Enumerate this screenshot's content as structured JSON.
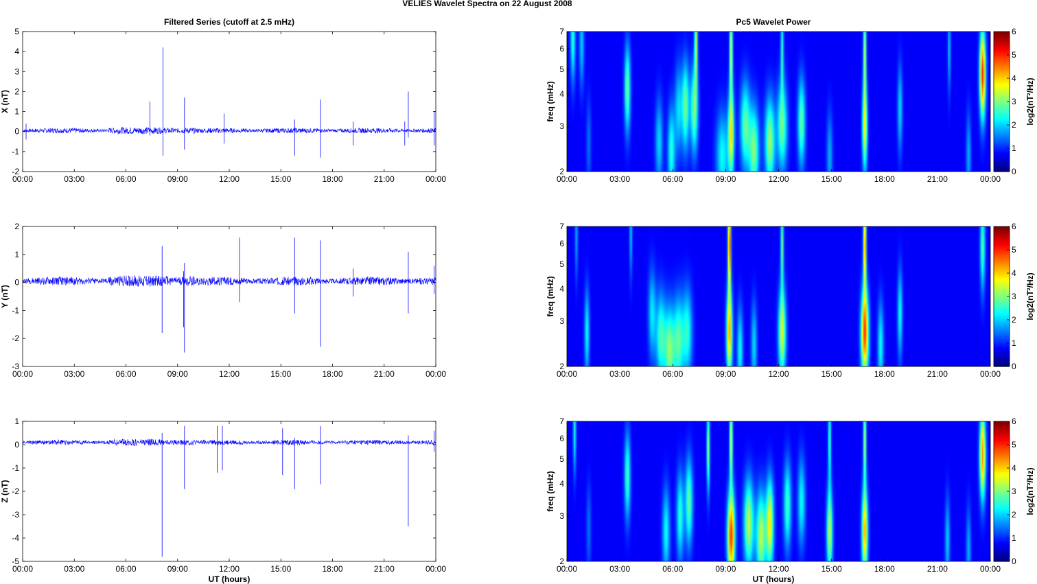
{
  "figure": {
    "suptitle": "VELIES Wavelet Spectra on 22 August    2008",
    "left_title": "Filtered Series (cutoff at 2.5 mHz)",
    "right_title": "Pc5 Wavelet Power",
    "xlabel": "UT (hours)",
    "freq_label": "freq (mHz)",
    "colorbar_label": "log2(nT²/Hz)",
    "colormap": "jet",
    "trace_color": "#0000ff"
  },
  "chart_data": [
    {
      "type": "line",
      "title": "Filtered Series (cutoff at 2.5 mHz)",
      "ylabel": "X (nT)",
      "xlabel": "",
      "xlim": [
        0,
        24
      ],
      "ylim": [
        -2,
        5
      ],
      "xticks": [
        "00:00",
        "03:00",
        "06:00",
        "09:00",
        "12:00",
        "15:00",
        "18:00",
        "21:00",
        "00:00"
      ],
      "yticks": [
        "-2",
        "-1",
        "0",
        "1",
        "2",
        "3",
        "4",
        "5"
      ],
      "noise_amplitude": 0.12,
      "baseline": 0.05,
      "spikes": [
        {
          "t": 0.2,
          "hi": 0.4,
          "lo": -0.4
        },
        {
          "t": 7.4,
          "hi": 1.5,
          "lo": -0.2
        },
        {
          "t": 8.15,
          "hi": 4.2,
          "lo": -1.2
        },
        {
          "t": 9.4,
          "hi": 1.7,
          "lo": -0.9
        },
        {
          "t": 11.7,
          "hi": 0.9,
          "lo": -0.6
        },
        {
          "t": 15.8,
          "hi": 0.6,
          "lo": -1.2
        },
        {
          "t": 17.3,
          "hi": 1.6,
          "lo": -1.3
        },
        {
          "t": 19.2,
          "hi": 0.5,
          "lo": -0.7
        },
        {
          "t": 22.2,
          "hi": 0.5,
          "lo": -0.7
        },
        {
          "t": 22.4,
          "hi": 2.0,
          "lo": -0.3
        },
        {
          "t": 23.9,
          "hi": 1.0,
          "lo": -0.7
        }
      ]
    },
    {
      "type": "heatmap",
      "title": "Pc5 Wavelet Power",
      "ylabel": "freq (mHz)",
      "xlim": [
        0,
        24
      ],
      "ylim": [
        2,
        7
      ],
      "yscale": "log",
      "xticks": [
        "00:00",
        "03:00",
        "06:00",
        "09:00",
        "12:00",
        "15:00",
        "18:00",
        "21:00",
        "00:00"
      ],
      "yticks": [
        "2",
        "3",
        "4",
        "5",
        "6",
        "7"
      ],
      "colorbar": {
        "range": [
          0,
          6
        ],
        "ticks": [
          "0",
          "1",
          "2",
          "3",
          "4",
          "5",
          "6"
        ],
        "label": "log2(nT²/Hz)"
      },
      "blobs": [
        {
          "t": 0.3,
          "f": 6.6,
          "v": 2.0,
          "w": 0.1
        },
        {
          "t": 0.8,
          "f": 6.3,
          "v": 1.4,
          "w": 0.1
        },
        {
          "t": 1.2,
          "f": 2.6,
          "v": 0.8,
          "w": 0.1
        },
        {
          "t": 3.4,
          "f": 4.2,
          "v": 2.5,
          "w": 0.12
        },
        {
          "t": 5.2,
          "f": 2.6,
          "v": 1.5,
          "w": 0.15
        },
        {
          "t": 5.9,
          "f": 2.4,
          "v": 2.0,
          "w": 0.15
        },
        {
          "t": 6.3,
          "f": 3.5,
          "v": 1.5,
          "w": 0.15
        },
        {
          "t": 6.7,
          "f": 3.6,
          "v": 2.5,
          "w": 0.15
        },
        {
          "t": 7.2,
          "f": 3.5,
          "v": 2.6,
          "w": 0.15
        },
        {
          "t": 7.3,
          "f": 6.5,
          "v": 3.0,
          "w": 0.06
        },
        {
          "t": 8.8,
          "f": 2.3,
          "v": 1.8,
          "w": 0.25
        },
        {
          "t": 9.3,
          "f": 2.8,
          "v": 3.5,
          "w": 0.12
        },
        {
          "t": 9.3,
          "f": 6.0,
          "v": 3.5,
          "w": 0.06
        },
        {
          "t": 10.1,
          "f": 3.0,
          "v": 2.4,
          "w": 0.2
        },
        {
          "t": 10.6,
          "f": 2.4,
          "v": 2.6,
          "w": 0.2
        },
        {
          "t": 11.5,
          "f": 2.6,
          "v": 2.8,
          "w": 0.2
        },
        {
          "t": 12.2,
          "f": 3.0,
          "v": 2.5,
          "w": 0.2
        },
        {
          "t": 12.2,
          "f": 6.0,
          "v": 2.0,
          "w": 0.06
        },
        {
          "t": 13.3,
          "f": 3.1,
          "v": 2.4,
          "w": 0.15
        },
        {
          "t": 14.9,
          "f": 2.3,
          "v": 1.2,
          "w": 0.12
        },
        {
          "t": 16.9,
          "f": 3.0,
          "v": 3.5,
          "w": 0.1
        },
        {
          "t": 16.9,
          "f": 6.0,
          "v": 3.0,
          "w": 0.06
        },
        {
          "t": 18.9,
          "f": 3.5,
          "v": 1.5,
          "w": 0.1
        },
        {
          "t": 21.7,
          "f": 6.0,
          "v": 1.4,
          "w": 0.06
        },
        {
          "t": 22.8,
          "f": 2.3,
          "v": 1.2,
          "w": 0.1
        },
        {
          "t": 23.6,
          "f": 4.8,
          "v": 4.9,
          "w": 0.12
        }
      ]
    },
    {
      "type": "line",
      "title": "",
      "ylabel": "Y (nT)",
      "xlabel": "",
      "xlim": [
        0,
        24
      ],
      "ylim": [
        -3,
        2
      ],
      "xticks": [
        "00:00",
        "03:00",
        "06:00",
        "09:00",
        "12:00",
        "15:00",
        "18:00",
        "21:00",
        "00:00"
      ],
      "yticks": [
        "-3",
        "-2",
        "-1",
        "0",
        "1",
        "2"
      ],
      "noise_amplitude": 0.14,
      "baseline": 0.05,
      "spikes": [
        {
          "t": 8.1,
          "hi": 1.3,
          "lo": -1.8
        },
        {
          "t": 9.4,
          "hi": 0.7,
          "lo": -2.5
        },
        {
          "t": 9.35,
          "hi": 0.4,
          "lo": -1.6
        },
        {
          "t": 12.6,
          "hi": 1.6,
          "lo": -0.7
        },
        {
          "t": 15.8,
          "hi": 1.6,
          "lo": -1.1
        },
        {
          "t": 17.3,
          "hi": 1.5,
          "lo": -2.3
        },
        {
          "t": 19.2,
          "hi": 0.5,
          "lo": -0.5
        },
        {
          "t": 22.4,
          "hi": 1.1,
          "lo": -1.1
        },
        {
          "t": 23.9,
          "hi": 0.6,
          "lo": -0.4
        }
      ]
    },
    {
      "type": "heatmap",
      "title": "",
      "ylabel": "freq (mHz)",
      "xlim": [
        0,
        24
      ],
      "ylim": [
        2,
        7
      ],
      "yscale": "log",
      "xticks": [
        "00:00",
        "03:00",
        "06:00",
        "09:00",
        "12:00",
        "15:00",
        "18:00",
        "21:00",
        "00:00"
      ],
      "yticks": [
        "2",
        "3",
        "4",
        "5",
        "6",
        "7"
      ],
      "colorbar": {
        "range": [
          0,
          6
        ],
        "ticks": [
          "0",
          "1",
          "2",
          "3",
          "4",
          "5",
          "6"
        ],
        "label": "log2(nT²/Hz)"
      },
      "blobs": [
        {
          "t": 0.5,
          "f": 6.5,
          "v": 1.2,
          "w": 0.06
        },
        {
          "t": 1.1,
          "f": 2.7,
          "v": 1.8,
          "w": 0.1
        },
        {
          "t": 3.6,
          "f": 6.6,
          "v": 1.4,
          "w": 0.06
        },
        {
          "t": 4.8,
          "f": 3.2,
          "v": 1.6,
          "w": 0.15
        },
        {
          "t": 5.3,
          "f": 2.6,
          "v": 2.2,
          "w": 0.2
        },
        {
          "t": 5.8,
          "f": 2.3,
          "v": 2.6,
          "w": 0.2
        },
        {
          "t": 6.3,
          "f": 2.5,
          "v": 2.3,
          "w": 0.2
        },
        {
          "t": 6.8,
          "f": 2.7,
          "v": 2.0,
          "w": 0.2
        },
        {
          "t": 9.2,
          "f": 2.7,
          "v": 4.0,
          "w": 0.12
        },
        {
          "t": 9.2,
          "f": 6.0,
          "v": 5.0,
          "w": 0.06
        },
        {
          "t": 9.8,
          "f": 2.3,
          "v": 1.8,
          "w": 0.12
        },
        {
          "t": 10.6,
          "f": 2.4,
          "v": 1.5,
          "w": 0.12
        },
        {
          "t": 12.2,
          "f": 2.7,
          "v": 3.2,
          "w": 0.15
        },
        {
          "t": 12.2,
          "f": 6.0,
          "v": 2.5,
          "w": 0.06
        },
        {
          "t": 16.9,
          "f": 2.7,
          "v": 4.8,
          "w": 0.15
        },
        {
          "t": 16.9,
          "f": 6.0,
          "v": 4.5,
          "w": 0.06
        },
        {
          "t": 17.8,
          "f": 2.4,
          "v": 1.8,
          "w": 0.12
        },
        {
          "t": 18.9,
          "f": 3.2,
          "v": 1.8,
          "w": 0.1
        },
        {
          "t": 23.6,
          "f": 5.8,
          "v": 2.2,
          "w": 0.1
        }
      ]
    },
    {
      "type": "line",
      "title": "",
      "ylabel": "Z (nT)",
      "xlabel": "UT (hours)",
      "xlim": [
        0,
        24
      ],
      "ylim": [
        -5,
        1
      ],
      "xticks": [
        "00:00",
        "03:00",
        "06:00",
        "09:00",
        "12:00",
        "15:00",
        "18:00",
        "21:00",
        "00:00"
      ],
      "yticks": [
        "-5",
        "-4",
        "-3",
        "-2",
        "-1",
        "0",
        "1"
      ],
      "noise_amplitude": 0.1,
      "baseline": 0.1,
      "spikes": [
        {
          "t": 8.1,
          "hi": 0.5,
          "lo": -4.8
        },
        {
          "t": 9.4,
          "hi": 0.8,
          "lo": -1.9
        },
        {
          "t": 11.3,
          "hi": 0.8,
          "lo": -1.2
        },
        {
          "t": 11.6,
          "hi": 0.8,
          "lo": -1.1
        },
        {
          "t": 15.1,
          "hi": 0.7,
          "lo": -1.3
        },
        {
          "t": 15.8,
          "hi": 0.3,
          "lo": -1.9
        },
        {
          "t": 17.3,
          "hi": 0.8,
          "lo": -1.7
        },
        {
          "t": 22.4,
          "hi": 0.4,
          "lo": -3.5
        },
        {
          "t": 23.9,
          "hi": 0.6,
          "lo": -0.3
        }
      ]
    },
    {
      "type": "heatmap",
      "title": "",
      "ylabel": "freq (mHz)",
      "xlim": [
        0,
        24
      ],
      "ylim": [
        2,
        7
      ],
      "yscale": "log",
      "xticks": [
        "00:00",
        "03:00",
        "06:00",
        "09:00",
        "12:00",
        "15:00",
        "18:00",
        "21:00",
        "00:00"
      ],
      "yticks": [
        "2",
        "3",
        "4",
        "5",
        "6",
        "7"
      ],
      "colorbar": {
        "range": [
          0,
          6
        ],
        "ticks": [
          "0",
          "1",
          "2",
          "3",
          "4",
          "5",
          "6"
        ],
        "label": "log2(nT²/Hz)"
      },
      "blobs": [
        {
          "t": 0.4,
          "f": 6.6,
          "v": 2.0,
          "w": 0.06
        },
        {
          "t": 1.2,
          "f": 2.7,
          "v": 0.8,
          "w": 0.1
        },
        {
          "t": 3.4,
          "f": 4.3,
          "v": 2.2,
          "w": 0.12
        },
        {
          "t": 5.6,
          "f": 2.6,
          "v": 1.8,
          "w": 0.15
        },
        {
          "t": 6.4,
          "f": 3.0,
          "v": 2.0,
          "w": 0.15
        },
        {
          "t": 6.9,
          "f": 3.4,
          "v": 2.4,
          "w": 0.15
        },
        {
          "t": 8.0,
          "f": 5.5,
          "v": 2.8,
          "w": 0.06
        },
        {
          "t": 9.3,
          "f": 2.5,
          "v": 4.8,
          "w": 0.15
        },
        {
          "t": 9.3,
          "f": 6.0,
          "v": 3.5,
          "w": 0.06
        },
        {
          "t": 10.3,
          "f": 2.8,
          "v": 3.0,
          "w": 0.2
        },
        {
          "t": 11.0,
          "f": 2.5,
          "v": 3.0,
          "w": 0.2
        },
        {
          "t": 11.5,
          "f": 2.8,
          "v": 3.5,
          "w": 0.15
        },
        {
          "t": 12.5,
          "f": 3.3,
          "v": 2.2,
          "w": 0.15
        },
        {
          "t": 13.3,
          "f": 3.4,
          "v": 1.8,
          "w": 0.15
        },
        {
          "t": 14.9,
          "f": 2.6,
          "v": 3.0,
          "w": 0.12
        },
        {
          "t": 14.9,
          "f": 6.0,
          "v": 2.2,
          "w": 0.06
        },
        {
          "t": 16.9,
          "f": 2.6,
          "v": 4.0,
          "w": 0.12
        },
        {
          "t": 16.9,
          "f": 6.0,
          "v": 3.0,
          "w": 0.06
        },
        {
          "t": 21.6,
          "f": 2.4,
          "v": 1.4,
          "w": 0.1
        },
        {
          "t": 22.8,
          "f": 2.2,
          "v": 1.2,
          "w": 0.1
        },
        {
          "t": 23.6,
          "f": 5.2,
          "v": 4.2,
          "w": 0.12
        }
      ]
    }
  ]
}
